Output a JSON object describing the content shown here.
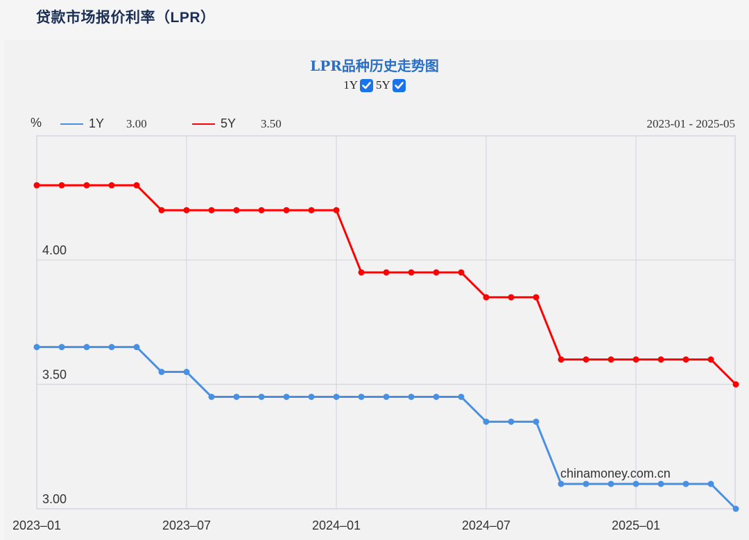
{
  "page": {
    "title": "贷款市场报价利率（LPR）"
  },
  "chart": {
    "title": "LPR品种历史走势图",
    "toggles": [
      {
        "label": "1Y",
        "checked": true
      },
      {
        "label": "5Y",
        "checked": true
      }
    ],
    "unit": "%",
    "legend": [
      {
        "name": "1Y",
        "value": "3.00",
        "color": "#4a90e2"
      },
      {
        "name": "5Y",
        "value": "3.50",
        "color": "#ff0000"
      }
    ],
    "date_range": "2023-01 - 2025-05",
    "watermark": "chinamoney.com.cn"
  },
  "chart_data": {
    "type": "line",
    "title": "LPR品种历史走势图",
    "xlabel": "",
    "ylabel": "%",
    "x": [
      "2023-01",
      "2023-02",
      "2023-03",
      "2023-04",
      "2023-05",
      "2023-06",
      "2023-07",
      "2023-08",
      "2023-09",
      "2023-10",
      "2023-11",
      "2023-12",
      "2024-01",
      "2024-02",
      "2024-03",
      "2024-04",
      "2024-05",
      "2024-06",
      "2024-07",
      "2024-08",
      "2024-09",
      "2024-10",
      "2024-11",
      "2024-12",
      "2025-01",
      "2025-02",
      "2025-03",
      "2025-04",
      "2025-05"
    ],
    "x_ticks": [
      "2023-01",
      "2023-07",
      "2024-01",
      "2024-07",
      "2025-01"
    ],
    "y_ticks": [
      "3.00",
      "3.50",
      "4.00"
    ],
    "ylim": [
      3.0,
      4.5
    ],
    "grid": true,
    "legend_position": "top-left",
    "series": [
      {
        "name": "1Y",
        "color": "#4a90e2",
        "values": [
          3.65,
          3.65,
          3.65,
          3.65,
          3.65,
          3.55,
          3.55,
          3.45,
          3.45,
          3.45,
          3.45,
          3.45,
          3.45,
          3.45,
          3.45,
          3.45,
          3.45,
          3.45,
          3.35,
          3.35,
          3.35,
          3.1,
          3.1,
          3.1,
          3.1,
          3.1,
          3.1,
          3.1,
          3.0
        ]
      },
      {
        "name": "5Y",
        "color": "#ff0000",
        "values": [
          4.3,
          4.3,
          4.3,
          4.3,
          4.3,
          4.2,
          4.2,
          4.2,
          4.2,
          4.2,
          4.2,
          4.2,
          4.2,
          3.95,
          3.95,
          3.95,
          3.95,
          3.95,
          3.85,
          3.85,
          3.85,
          3.6,
          3.6,
          3.6,
          3.6,
          3.6,
          3.6,
          3.6,
          3.5
        ]
      }
    ]
  }
}
